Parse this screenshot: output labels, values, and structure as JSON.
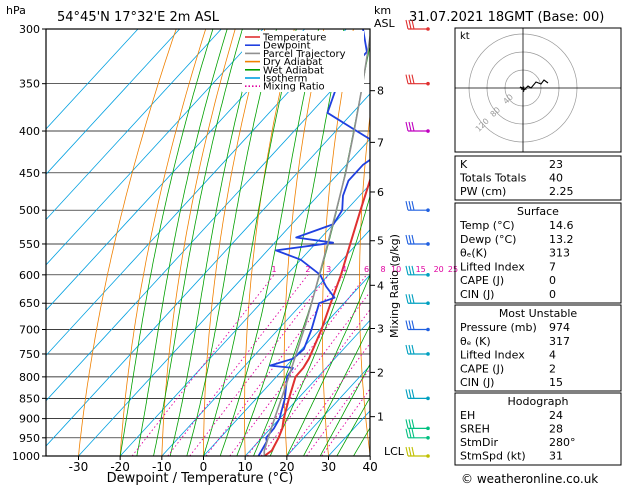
{
  "header": {
    "location": "54°45'N  17°32'E  2m  ASL",
    "valid_time": "31.07.2021  18GMT  (Base: 00)",
    "hpa_label": "hPa",
    "km_label": "km",
    "asl_label": "ASL",
    "mixing_ratio_axis": "Mixing Ratio (g/kg)",
    "lcl_label": "LCL",
    "credit": "© weatheronline.co.uk"
  },
  "chart_data": {
    "type": "line",
    "subtype": "skew-T log-P diagram",
    "xlabel": "Dewpoint / Temperature (°C)",
    "ylabel": "hPa",
    "x_ticks": [
      -30,
      -20,
      -10,
      0,
      10,
      20,
      30,
      40
    ],
    "xlim": [
      -35,
      40
    ],
    "ylim": [
      1000,
      300
    ],
    "y_scale": "log",
    "pressure_ticks": [
      300,
      350,
      400,
      450,
      500,
      550,
      600,
      650,
      700,
      750,
      800,
      850,
      900,
      950,
      1000
    ],
    "km_ticks": [
      {
        "label": "8",
        "p": 357
      },
      {
        "label": "7",
        "p": 413
      },
      {
        "label": "6",
        "p": 475
      },
      {
        "label": "5",
        "p": 545
      },
      {
        "label": "4",
        "p": 618
      },
      {
        "label": "3",
        "p": 698
      },
      {
        "label": "2",
        "p": 790
      },
      {
        "label": "1",
        "p": 895
      }
    ],
    "mixing_ratio_labels": [
      "1",
      "2",
      "3",
      "4",
      "6",
      "8",
      "10",
      "15",
      "20",
      "25"
    ],
    "mixing_ratio_values": [
      1,
      2,
      3,
      4,
      6,
      8,
      10,
      15,
      20,
      25
    ],
    "legend": [
      "Temperature",
      "Dewpoint",
      "Parcel Trajectory",
      "Dry Adiabat",
      "Wet Adiabat",
      "Isotherm",
      "Mixing Ratio"
    ],
    "legend_colors": [
      "#e03030",
      "#2040e0",
      "#909090",
      "#f08000",
      "#00a000",
      "#00a0e0",
      "#e000a0"
    ],
    "legend_styles": [
      "solid",
      "solid",
      "solid",
      "solid",
      "solid",
      "solid",
      "dotted"
    ],
    "series": [
      {
        "name": "Temperature",
        "color": "#e03030",
        "points": [
          [
            1000,
            14.6
          ],
          [
            985,
            15.2
          ],
          [
            950,
            14.0
          ],
          [
            925,
            12.8
          ],
          [
            900,
            11.0
          ],
          [
            850,
            7.8
          ],
          [
            800,
            4.6
          ],
          [
            780,
            4.5
          ],
          [
            760,
            3.8
          ],
          [
            700,
            0.4
          ],
          [
            650,
            -3.2
          ],
          [
            600,
            -7.0
          ],
          [
            550,
            -11.6
          ],
          [
            500,
            -16.6
          ],
          [
            450,
            -22.0
          ],
          [
            400,
            -28.2
          ],
          [
            370,
            -32.0
          ],
          [
            350,
            -34.6
          ],
          [
            300,
            -42.0
          ]
        ]
      },
      {
        "name": "Dewpoint",
        "color": "#2040e0",
        "points": [
          [
            1000,
            13.2
          ],
          [
            960,
            12.0
          ],
          [
            950,
            11.0
          ],
          [
            925,
            10.8
          ],
          [
            900,
            10.0
          ],
          [
            850,
            6.8
          ],
          [
            800,
            2.6
          ],
          [
            780,
            2.0
          ],
          [
            775,
            -4.0
          ],
          [
            760,
            0.0
          ],
          [
            740,
            0.5
          ],
          [
            700,
            -2.0
          ],
          [
            650,
            -6.0
          ],
          [
            640,
            -3.5
          ],
          [
            620,
            -8.0
          ],
          [
            610,
            -10.0
          ],
          [
            600,
            -12.0
          ],
          [
            575,
            -20.0
          ],
          [
            560,
            -28.0
          ],
          [
            548,
            -16.0
          ],
          [
            540,
            -26.0
          ],
          [
            520,
            -20.0
          ],
          [
            500,
            -21.0
          ],
          [
            480,
            -24.0
          ],
          [
            460,
            -26.0
          ],
          [
            440,
            -26.0
          ],
          [
            420,
            -24.0
          ],
          [
            415,
            -27.0
          ],
          [
            400,
            -35.0
          ],
          [
            380,
            -46.0
          ],
          [
            350,
            -50.0
          ],
          [
            320,
            -50.0
          ],
          [
            300,
            -56.0
          ]
        ]
      },
      {
        "name": "Parcel Trajectory",
        "color": "#909090",
        "points": [
          [
            1000,
            14.6
          ],
          [
            985,
            13.4
          ],
          [
            950,
            11.5
          ],
          [
            900,
            8.8
          ],
          [
            850,
            6.0
          ],
          [
            800,
            3.0
          ],
          [
            750,
            -0.3
          ],
          [
            700,
            -3.8
          ],
          [
            650,
            -7.8
          ],
          [
            600,
            -12.2
          ],
          [
            550,
            -17.0
          ],
          [
            500,
            -22.4
          ],
          [
            450,
            -28.4
          ],
          [
            400,
            -35.6
          ],
          [
            350,
            -44.0
          ],
          [
            300,
            -54.0
          ]
        ]
      }
    ],
    "wind_barbs": [
      {
        "p": 300,
        "color": "#e03030"
      },
      {
        "p": 350,
        "color": "#e03030"
      },
      {
        "p": 400,
        "color": "#c000c0"
      },
      {
        "p": 500,
        "color": "#2060e0"
      },
      {
        "p": 550,
        "color": "#2060e0"
      },
      {
        "p": 600,
        "color": "#00a0c0"
      },
      {
        "p": 650,
        "color": "#00a0c0"
      },
      {
        "p": 700,
        "color": "#2060e0"
      },
      {
        "p": 750,
        "color": "#00a0c0"
      },
      {
        "p": 850,
        "color": "#00a0c0"
      },
      {
        "p": 925,
        "color": "#00c080"
      },
      {
        "p": 950,
        "color": "#00c080"
      },
      {
        "p": 1000,
        "color": "#c0c000"
      }
    ]
  },
  "hodograph": {
    "unit_label": "kt",
    "ring_labels": [
      "40",
      "80",
      "120"
    ]
  },
  "indices": {
    "rows": [
      {
        "label": "K",
        "value": "23"
      },
      {
        "label": "Totals Totals",
        "value": "40"
      },
      {
        "label": "PW (cm)",
        "value": "2.25"
      }
    ]
  },
  "surface": {
    "title": "Surface",
    "rows": [
      {
        "label": "Temp (°C)",
        "value": "14.6"
      },
      {
        "label": "Dewp (°C)",
        "value": "13.2"
      },
      {
        "label": "θₑ(K)",
        "value": "313"
      },
      {
        "label": "Lifted Index",
        "value": "7"
      },
      {
        "label": "CAPE (J)",
        "value": "0"
      },
      {
        "label": "CIN (J)",
        "value": "0"
      }
    ]
  },
  "most_unstable": {
    "title": "Most Unstable",
    "rows": [
      {
        "label": "Pressure (mb)",
        "value": "974"
      },
      {
        "label": "θₑ (K)",
        "value": "317"
      },
      {
        "label": "Lifted Index",
        "value": "4"
      },
      {
        "label": "CAPE (J)",
        "value": "2"
      },
      {
        "label": "CIN (J)",
        "value": "15"
      }
    ]
  },
  "hodograph_stats": {
    "title": "Hodograph",
    "rows": [
      {
        "label": "EH",
        "value": "24"
      },
      {
        "label": "SREH",
        "value": "28"
      },
      {
        "label": "StmDir",
        "value": "280°"
      },
      {
        "label": "StmSpd (kt)",
        "value": "31"
      }
    ]
  }
}
